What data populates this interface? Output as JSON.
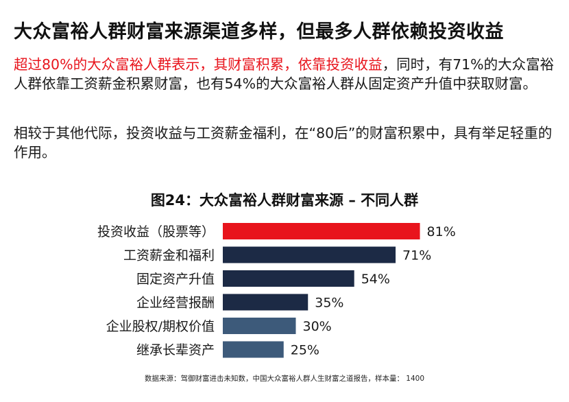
{
  "headline": "大众富裕人群财富来源渠道多样，但最多人群依赖投资收益",
  "paragraph1": {
    "highlight": "超过80%的大众富裕人群表示，其财富积累，依靠投资收益",
    "rest": "，同时，有71%的大众富裕人群依靠工资薪金积累财富，也有54%的大众富裕人群从固定资产升值中获取财富。"
  },
  "paragraph2": "相较于其他代际，投资收益与工资薪金福利，在“80后”的财富积累中，具有举足轻重的作用。",
  "chart_data": {
    "type": "bar",
    "orientation": "horizontal",
    "title": "图24：大众富裕人群财富来源 – 不同人群",
    "categories": [
      "投资收益（股票等）",
      "工资薪金和福利",
      "固定资产升值",
      "企业经营报酬",
      "企业股权/期权价值",
      "继承长辈资产"
    ],
    "values": [
      81,
      71,
      54,
      35,
      30,
      25
    ],
    "value_labels": [
      "81%",
      "71%",
      "54%",
      "35%",
      "30%",
      "25%"
    ],
    "bar_colors": [
      "#e8141c",
      "#1c2a45",
      "#1c2a45",
      "#1c2a45",
      "#3d5a7a",
      "#3d5a7a"
    ],
    "xlim": [
      0,
      100
    ],
    "grid": false,
    "legend": "none"
  },
  "source": "数据来源：驾御财富进击未知数，中国大众富裕人群人生财富之道报告，样本量： 1400"
}
